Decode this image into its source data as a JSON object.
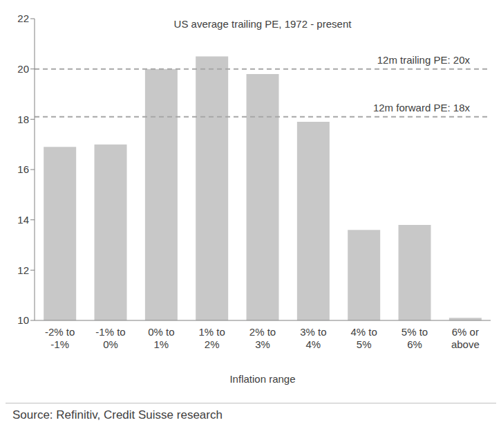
{
  "chart_data": {
    "type": "bar",
    "title": "US average trailing PE, 1972 - present",
    "x_label": "Inflation range",
    "source": "Source: Refinitiv, Credit Suisse research",
    "categories": [
      "-2% to -1%",
      "-1% to 0%",
      "0% to 1%",
      "1% to 2%",
      "2% to 3%",
      "3% to 4%",
      "4% to 5%",
      "5% to 6%",
      "6% or above"
    ],
    "values": [
      16.9,
      17.0,
      20.0,
      20.5,
      19.8,
      17.9,
      13.6,
      13.8,
      10.1
    ],
    "color": "#c8c8c8",
    "ylim": [
      10,
      22
    ],
    "yticks": [
      10,
      12,
      14,
      16,
      18,
      20,
      22
    ],
    "grid": false,
    "annotations": [
      {
        "label": "12m trailing PE: 20x",
        "y": 20
      },
      {
        "label": "12m forward PE: 18x",
        "y": 18.1
      }
    ]
  }
}
